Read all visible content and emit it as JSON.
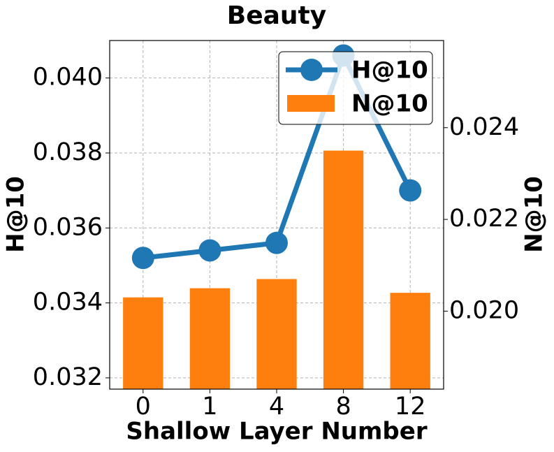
{
  "chart_data": {
    "type": "bar-line",
    "title": "Beauty",
    "x_label": "Shallow Layer Number",
    "y_label": "H@10",
    "y2_label": "N@10",
    "categories": [
      "0",
      "1",
      "4",
      "8",
      "12"
    ],
    "series": [
      {
        "name": "H@10",
        "type": "line",
        "color": "#1f77b4",
        "values": [
          0.0352,
          0.0354,
          0.0356,
          0.0406,
          0.037
        ]
      },
      {
        "name": "N@10",
        "type": "bar",
        "axis": "y2",
        "color": "#ff7f0e",
        "values": [
          0.0203,
          0.0205,
          0.0207,
          0.0235,
          0.0204
        ]
      }
    ],
    "ylim": [
      0.0317,
      0.041
    ],
    "yticks": [
      0.032,
      0.034,
      0.036,
      0.038,
      {
        "value": 0.04,
        "label": "0.040"
      }
    ],
    "y2lim": [
      0.0183,
      0.0259
    ],
    "y2ticks": [
      {
        "value": 0.02,
        "label": "0.020"
      },
      0.022,
      0.024
    ],
    "grid": true,
    "legend": "upper right"
  }
}
